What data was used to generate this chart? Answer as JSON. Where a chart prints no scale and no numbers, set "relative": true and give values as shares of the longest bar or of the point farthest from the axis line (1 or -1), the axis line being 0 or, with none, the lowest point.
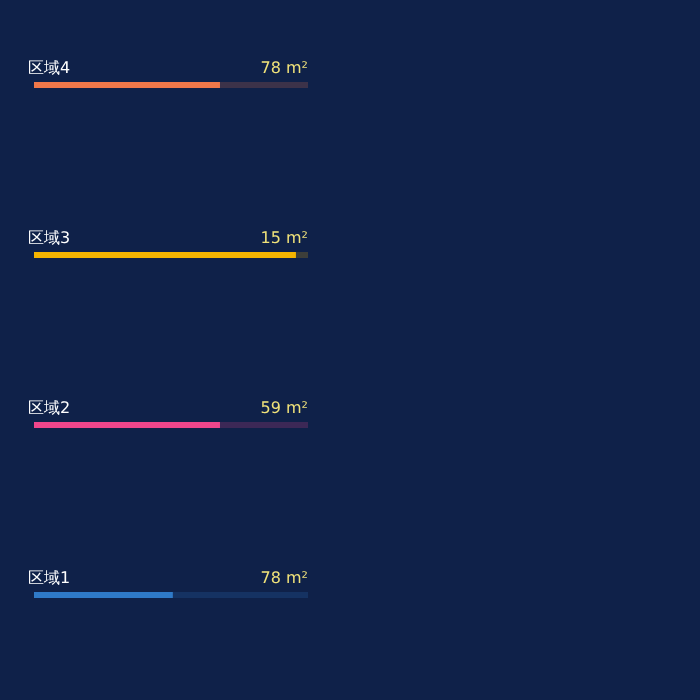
{
  "chart_data": {
    "type": "bar",
    "orientation": "horizontal",
    "relative": true,
    "categories": [
      "区域4",
      "区域3",
      "区域2",
      "区域1"
    ],
    "values": [
      0.71,
      1,
      0.71,
      0.53
    ],
    "colors": [
      "#f0784a",
      "#f5b400",
      "#f0468c",
      "#2f7ac8"
    ],
    "annotations": [
      "78 m²",
      "15 m²",
      "59 m²",
      "78 m²"
    ]
  }
}
